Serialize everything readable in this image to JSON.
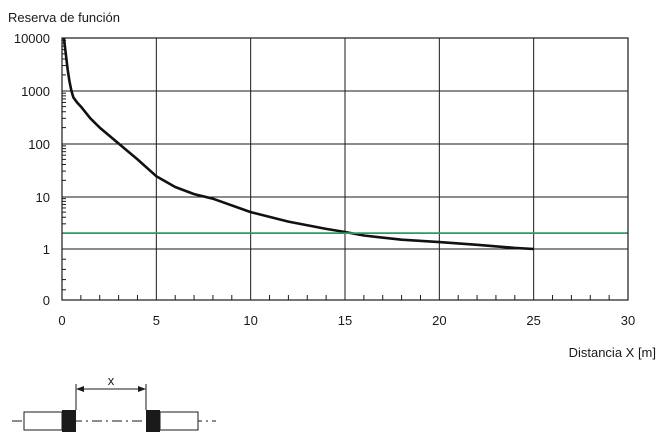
{
  "chart_data": {
    "type": "line",
    "ylabel": "Reserva de función",
    "xlabel": "Distancia X [m]",
    "x_ticks": [
      0,
      5,
      10,
      15,
      20,
      25,
      30
    ],
    "y_ticks": [
      {
        "value": 0,
        "label": "0"
      },
      {
        "value": 1,
        "label": "1"
      },
      {
        "value": 10,
        "label": "10"
      },
      {
        "value": 100,
        "label": "100"
      },
      {
        "value": 1000,
        "label": "1000"
      },
      {
        "value": 10000,
        "label": "10000"
      }
    ],
    "y_scale": "log",
    "xlim": [
      0,
      30
    ],
    "grid": true,
    "series": [
      {
        "color": "#111111",
        "x": [
          0.1,
          0.2,
          0.3,
          0.4,
          0.5,
          0.6,
          0.8,
          1,
          1.5,
          2,
          3,
          4,
          5,
          6,
          7,
          8,
          10,
          12,
          14,
          15,
          16,
          18,
          20,
          22,
          24,
          25
        ],
        "y": [
          10000,
          5000,
          2500,
          1500,
          1000,
          750,
          600,
          500,
          300,
          200,
          100,
          50,
          24,
          15,
          11,
          9,
          5,
          3.3,
          2.4,
          2.1,
          1.8,
          1.5,
          1.35,
          1.2,
          1.05,
          1
        ]
      },
      {
        "color": "#2e9e55",
        "x": [
          0,
          30
        ],
        "y": [
          2,
          2
        ]
      }
    ],
    "inset_label": "x"
  }
}
